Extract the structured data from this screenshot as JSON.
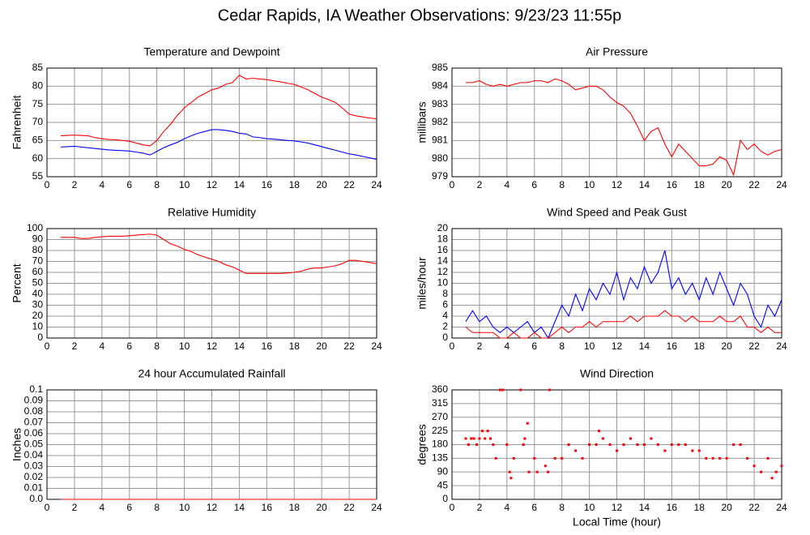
{
  "title": "Cedar Rapids, IA Weather Observations: 9/23/23 11:55p",
  "chart_data": [
    {
      "type": "line",
      "title": "Temperature and Dewpoint",
      "ylabel": "Fahrenheit",
      "xlim": [
        0,
        24
      ],
      "xticks": [
        0,
        2,
        4,
        6,
        8,
        10,
        12,
        14,
        16,
        18,
        20,
        22,
        24
      ],
      "ylim": [
        55,
        85
      ],
      "yticks": [
        55,
        60,
        65,
        70,
        75,
        80,
        85
      ],
      "grid": true,
      "x": [
        1,
        1.5,
        2,
        2.5,
        3,
        3.5,
        4,
        4.5,
        5,
        5.5,
        6,
        6.5,
        7,
        7.5,
        8,
        8.5,
        9,
        9.5,
        10,
        10.5,
        11,
        11.5,
        12,
        12.5,
        13,
        13.5,
        14,
        14.5,
        15,
        15.5,
        16,
        16.5,
        17,
        17.5,
        18,
        18.5,
        19,
        19.5,
        20,
        20.5,
        21,
        21.5,
        22,
        22.5,
        23,
        23.5,
        24
      ],
      "series": [
        {
          "color": "#ff0000",
          "values": [
            66.3,
            66.4,
            66.5,
            66.4,
            66.3,
            65.8,
            65.5,
            65.3,
            65.2,
            65,
            64.8,
            64.3,
            63.8,
            63.5,
            65,
            67.5,
            69.5,
            72,
            74,
            75.5,
            77,
            78,
            79,
            79.5,
            80.5,
            81,
            83,
            82,
            82.2,
            82,
            81.8,
            81.5,
            81.2,
            80.8,
            80.5,
            79.8,
            79,
            78,
            77,
            76.3,
            75.5,
            74,
            72.3,
            71.8,
            71.5,
            71.2,
            71
          ]
        },
        {
          "color": "#0000ff",
          "values": [
            63.2,
            63.3,
            63.4,
            63.2,
            63,
            62.8,
            62.6,
            62.4,
            62.3,
            62.2,
            62.1,
            61.8,
            61.5,
            61,
            62,
            63,
            63.8,
            64.5,
            65.5,
            66.3,
            67,
            67.5,
            68,
            68,
            67.8,
            67.5,
            67,
            66.8,
            66,
            65.8,
            65.5,
            65.4,
            65.2,
            65,
            64.9,
            64.6,
            64.3,
            63.8,
            63.3,
            62.8,
            62.3,
            61.8,
            61.3,
            61,
            60.6,
            60.2,
            59.8
          ]
        }
      ]
    },
    {
      "type": "line",
      "title": "Air Pressure",
      "ylabel": "millibars",
      "xlim": [
        0,
        24
      ],
      "xticks": [
        0,
        2,
        4,
        6,
        8,
        10,
        12,
        14,
        16,
        18,
        20,
        22,
        24
      ],
      "ylim": [
        979,
        985
      ],
      "yticks": [
        979,
        980,
        981,
        982,
        983,
        984,
        985
      ],
      "grid": true,
      "x": [
        1,
        1.5,
        2,
        2.5,
        3,
        3.5,
        4,
        4.5,
        5,
        5.5,
        6,
        6.5,
        7,
        7.5,
        8,
        8.5,
        9,
        9.5,
        10,
        10.5,
        11,
        11.5,
        12,
        12.5,
        13,
        13.5,
        14,
        14.5,
        15,
        15.5,
        16,
        16.5,
        17,
        17.5,
        18,
        18.5,
        19,
        19.5,
        20,
        20.5,
        21,
        21.5,
        22,
        22.5,
        23,
        23.5,
        24
      ],
      "series": [
        {
          "color": "#ff0000",
          "values": [
            984.2,
            984.2,
            984.3,
            984.1,
            984.0,
            984.1,
            984.0,
            984.1,
            984.2,
            984.2,
            984.3,
            984.3,
            984.2,
            984.4,
            984.3,
            984.1,
            983.8,
            983.9,
            984.0,
            984.0,
            983.8,
            983.4,
            983.1,
            982.9,
            982.5,
            981.8,
            981.0,
            981.5,
            981.7,
            980.8,
            980.1,
            980.8,
            980.4,
            980.0,
            979.6,
            979.6,
            979.7,
            980.1,
            979.9,
            979.1,
            981.0,
            980.5,
            980.8,
            980.4,
            980.2,
            980.4,
            980.5
          ]
        }
      ]
    },
    {
      "type": "line",
      "title": "Relative Humidity",
      "ylabel": "Percent",
      "xlim": [
        0,
        24
      ],
      "xticks": [
        0,
        2,
        4,
        6,
        8,
        10,
        12,
        14,
        16,
        18,
        20,
        22,
        24
      ],
      "ylim": [
        0,
        100
      ],
      "yticks": [
        0,
        10,
        20,
        30,
        40,
        50,
        60,
        70,
        80,
        90,
        100
      ],
      "grid": true,
      "x": [
        1,
        1.5,
        2,
        2.5,
        3,
        3.5,
        4,
        4.5,
        5,
        5.5,
        6,
        6.5,
        7,
        7.5,
        8,
        8.5,
        9,
        9.5,
        10,
        10.5,
        11,
        11.5,
        12,
        12.5,
        13,
        13.5,
        14,
        14.5,
        15,
        15.5,
        16,
        16.5,
        17,
        17.5,
        18,
        18.5,
        19,
        19.5,
        20,
        20.5,
        21,
        21.5,
        22,
        22.5,
        23,
        23.5,
        24
      ],
      "series": [
        {
          "color": "#ff0000",
          "values": [
            92,
            92,
            92,
            91,
            91,
            92,
            92.5,
            93,
            93,
            93,
            93.5,
            94,
            94.5,
            95,
            94,
            90,
            86,
            84,
            81,
            79,
            76,
            74,
            72,
            70,
            67,
            65,
            62,
            59,
            59,
            59,
            59,
            59,
            59,
            59.5,
            60,
            61,
            63,
            64,
            64,
            65,
            66,
            68,
            71,
            71,
            70,
            69,
            68
          ]
        }
      ]
    },
    {
      "type": "line",
      "title": "Wind Speed and Peak Gust",
      "ylabel": "miles/hour",
      "xlim": [
        0,
        24
      ],
      "xticks": [
        0,
        2,
        4,
        6,
        8,
        10,
        12,
        14,
        16,
        18,
        20,
        22,
        24
      ],
      "ylim": [
        0,
        20
      ],
      "yticks": [
        0,
        2,
        4,
        6,
        8,
        10,
        12,
        14,
        16,
        18,
        20
      ],
      "grid": true,
      "x": [
        1,
        1.5,
        2,
        2.5,
        3,
        3.5,
        4,
        4.5,
        5,
        5.5,
        6,
        6.5,
        7,
        7.5,
        8,
        8.5,
        9,
        9.5,
        10,
        10.5,
        11,
        11.5,
        12,
        12.5,
        13,
        13.5,
        14,
        14.5,
        15,
        15.5,
        16,
        16.5,
        17,
        17.5,
        18,
        18.5,
        19,
        19.5,
        20,
        20.5,
        21,
        21.5,
        22,
        22.5,
        23,
        23.5,
        24
      ],
      "series": [
        {
          "color": "#0000ff",
          "values": [
            3,
            5,
            3,
            4,
            2,
            1,
            2,
            1,
            2,
            3,
            1,
            2,
            0,
            3,
            6,
            4,
            8,
            5,
            9,
            7,
            10,
            8,
            12,
            7,
            11,
            9,
            13,
            10,
            12,
            16,
            9,
            11,
            8,
            10,
            7,
            11,
            8,
            12,
            9,
            6,
            10,
            8,
            4,
            2,
            6,
            4,
            7
          ]
        },
        {
          "color": "#ff0000",
          "values": [
            2,
            1,
            1,
            1,
            1,
            0,
            0,
            1,
            0,
            0,
            1,
            0,
            0,
            1,
            2,
            1,
            2,
            2,
            3,
            2,
            3,
            3,
            3,
            3,
            4,
            3,
            4,
            4,
            4,
            5,
            4,
            4,
            3,
            4,
            3,
            3,
            3,
            4,
            3,
            3,
            4,
            2,
            2,
            1,
            2,
            1,
            1
          ]
        }
      ]
    },
    {
      "type": "line",
      "title": "24 hour Accumulated Rainfall",
      "ylabel": "Inches",
      "xlim": [
        0,
        24
      ],
      "xticks": [
        0,
        2,
        4,
        6,
        8,
        10,
        12,
        14,
        16,
        18,
        20,
        22,
        24
      ],
      "ylim": [
        0,
        0.1
      ],
      "yticks": [
        {
          "value": 0,
          "label": "0.0"
        },
        0.01,
        0.02,
        0.03,
        0.04,
        0.05,
        0.06,
        0.07,
        0.08,
        0.09,
        0.1
      ],
      "grid": true,
      "x": [
        1,
        24
      ],
      "series": [
        {
          "color": "#ff0000",
          "values": [
            0,
            0
          ]
        }
      ]
    },
    {
      "type": "scatter",
      "title": "Wind Direction",
      "ylabel": "degrees",
      "xlabel": "Local Time (hour)",
      "xlim": [
        0,
        24
      ],
      "xticks": [
        0,
        2,
        4,
        6,
        8,
        10,
        12,
        14,
        16,
        18,
        20,
        22,
        24
      ],
      "ylim": [
        0,
        360
      ],
      "yticks": [
        0,
        45,
        90,
        135,
        180,
        225,
        270,
        315,
        360
      ],
      "grid": true,
      "color": "#ff0000",
      "x": [
        1,
        1.2,
        1.4,
        1.6,
        1.8,
        2,
        2.2,
        2.4,
        2.6,
        2.8,
        3,
        3.2,
        3.5,
        3.7,
        4,
        4.2,
        4.3,
        4.5,
        5,
        5.2,
        5.3,
        5.5,
        5.6,
        6,
        6.2,
        6.8,
        7,
        7.1,
        7.5,
        8,
        8.5,
        9,
        9.5,
        10,
        10.5,
        10.7,
        11,
        11.5,
        12,
        12.5,
        13,
        13.5,
        14,
        14.5,
        15,
        15.5,
        16,
        16.5,
        17,
        17.5,
        18,
        18.5,
        19,
        19.5,
        20,
        20.5,
        21,
        21.5,
        22,
        22.5,
        23,
        23.3,
        23.6,
        24
      ],
      "values": [
        200,
        180,
        200,
        200,
        180,
        200,
        225,
        200,
        225,
        200,
        180,
        135,
        360,
        360,
        180,
        90,
        70,
        135,
        360,
        180,
        200,
        250,
        90,
        135,
        90,
        110,
        90,
        360,
        135,
        135,
        180,
        160,
        135,
        180,
        180,
        225,
        200,
        180,
        160,
        180,
        200,
        180,
        180,
        200,
        180,
        160,
        180,
        180,
        180,
        160,
        160,
        135,
        135,
        135,
        135,
        180,
        180,
        135,
        110,
        90,
        135,
        70,
        90,
        110
      ]
    }
  ]
}
